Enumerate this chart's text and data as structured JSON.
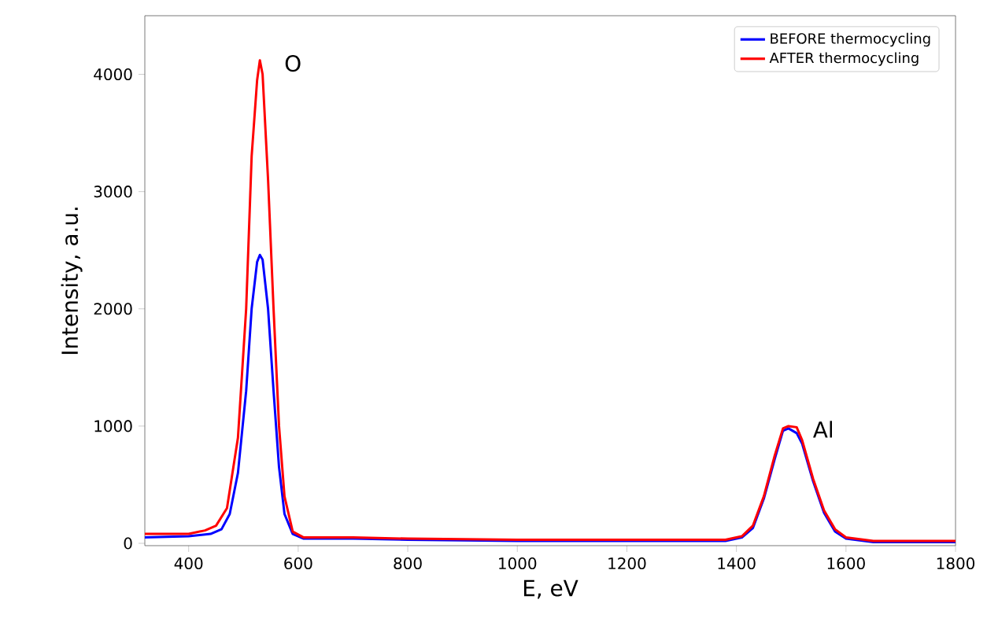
{
  "chart_data": {
    "type": "line",
    "xlabel": "E, eV",
    "ylabel": "Intensity, a.u.",
    "xlim": [
      320,
      1800
    ],
    "ylim": [
      -20,
      4500
    ],
    "xticks": [
      400,
      600,
      800,
      1000,
      1200,
      1400,
      1600,
      1800
    ],
    "yticks": [
      0,
      1000,
      2000,
      3000,
      4000
    ],
    "legend": "top right",
    "grid": false,
    "annotations": [
      {
        "text": "O",
        "x": 530,
        "y": 4120
      },
      {
        "text": "Al",
        "x": 1495,
        "y": 1000
      }
    ],
    "series": [
      {
        "name": "BEFORE thermocycling",
        "color": "#0000ff",
        "x": [
          320,
          400,
          440,
          460,
          475,
          490,
          505,
          515,
          525,
          530,
          535,
          545,
          555,
          565,
          575,
          590,
          610,
          700,
          800,
          1000,
          1200,
          1380,
          1410,
          1430,
          1450,
          1470,
          1485,
          1495,
          1510,
          1520,
          1540,
          1560,
          1580,
          1600,
          1650,
          1800
        ],
        "values": [
          50,
          60,
          80,
          120,
          250,
          600,
          1300,
          2000,
          2400,
          2460,
          2420,
          2000,
          1300,
          650,
          250,
          80,
          40,
          40,
          30,
          20,
          20,
          20,
          50,
          130,
          380,
          720,
          960,
          980,
          940,
          850,
          530,
          260,
          100,
          40,
          10,
          10
        ]
      },
      {
        "name": "AFTER thermocycling",
        "color": "#ff0000",
        "x": [
          320,
          360,
          400,
          430,
          450,
          470,
          490,
          505,
          515,
          525,
          530,
          535,
          545,
          555,
          565,
          575,
          590,
          610,
          700,
          800,
          1000,
          1200,
          1380,
          1410,
          1430,
          1450,
          1470,
          1485,
          1495,
          1510,
          1520,
          1540,
          1560,
          1580,
          1600,
          1650,
          1800
        ],
        "values": [
          80,
          80,
          80,
          110,
          150,
          300,
          900,
          2000,
          3300,
          3950,
          4120,
          4000,
          3100,
          2000,
          1000,
          400,
          100,
          50,
          50,
          40,
          30,
          30,
          30,
          60,
          150,
          400,
          750,
          980,
          1000,
          990,
          880,
          550,
          280,
          120,
          50,
          20,
          20
        ]
      }
    ]
  }
}
